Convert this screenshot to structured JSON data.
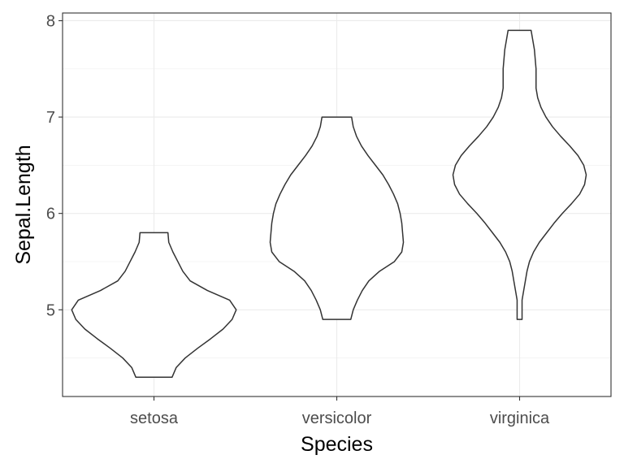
{
  "chart_data": {
    "type": "violin",
    "title": "",
    "xlabel": "Species",
    "ylabel": "Sepal.Length",
    "categories": [
      "setosa",
      "versicolor",
      "virginica"
    ],
    "ylim": [
      4.1,
      8.08
    ],
    "y_ticks": [
      5,
      6,
      7,
      8
    ],
    "y_tick_labels": [
      "5",
      "6",
      "7",
      "8"
    ],
    "grid": true,
    "legend": "none",
    "colors": {
      "outline": "#333333",
      "fill": "#ffffff",
      "grid": "#ebebeb"
    },
    "violins": [
      {
        "name": "setosa",
        "min": 4.3,
        "max": 5.8,
        "profile": [
          [
            4.3,
            0.22
          ],
          [
            4.4,
            0.27
          ],
          [
            4.5,
            0.38
          ],
          [
            4.6,
            0.53
          ],
          [
            4.7,
            0.69
          ],
          [
            4.8,
            0.84
          ],
          [
            4.9,
            0.95
          ],
          [
            5.0,
            1.0
          ],
          [
            5.1,
            0.92
          ],
          [
            5.2,
            0.65
          ],
          [
            5.3,
            0.44
          ],
          [
            5.4,
            0.35
          ],
          [
            5.5,
            0.29
          ],
          [
            5.6,
            0.23
          ],
          [
            5.7,
            0.18
          ],
          [
            5.8,
            0.17
          ]
        ]
      },
      {
        "name": "versicolor",
        "min": 4.9,
        "max": 7.0,
        "profile": [
          [
            4.9,
            0.17
          ],
          [
            5.0,
            0.2
          ],
          [
            5.1,
            0.25
          ],
          [
            5.2,
            0.31
          ],
          [
            5.3,
            0.39
          ],
          [
            5.4,
            0.52
          ],
          [
            5.5,
            0.7
          ],
          [
            5.6,
            0.79
          ],
          [
            5.7,
            0.81
          ],
          [
            5.8,
            0.8
          ],
          [
            5.9,
            0.79
          ],
          [
            6.0,
            0.77
          ],
          [
            6.1,
            0.74
          ],
          [
            6.2,
            0.69
          ],
          [
            6.3,
            0.63
          ],
          [
            6.4,
            0.56
          ],
          [
            6.5,
            0.47
          ],
          [
            6.6,
            0.38
          ],
          [
            6.7,
            0.3
          ],
          [
            6.8,
            0.24
          ],
          [
            6.9,
            0.2
          ],
          [
            7.0,
            0.18
          ]
        ]
      },
      {
        "name": "virginica",
        "min": 4.9,
        "max": 7.9,
        "profile": [
          [
            4.9,
            0.03
          ],
          [
            5.0,
            0.03
          ],
          [
            5.1,
            0.03
          ],
          [
            5.2,
            0.05
          ],
          [
            5.3,
            0.07
          ],
          [
            5.4,
            0.09
          ],
          [
            5.5,
            0.12
          ],
          [
            5.6,
            0.17
          ],
          [
            5.7,
            0.24
          ],
          [
            5.8,
            0.33
          ],
          [
            5.9,
            0.42
          ],
          [
            6.0,
            0.52
          ],
          [
            6.1,
            0.63
          ],
          [
            6.2,
            0.73
          ],
          [
            6.3,
            0.79
          ],
          [
            6.4,
            0.81
          ],
          [
            6.5,
            0.78
          ],
          [
            6.6,
            0.71
          ],
          [
            6.7,
            0.61
          ],
          [
            6.8,
            0.5
          ],
          [
            6.9,
            0.4
          ],
          [
            7.0,
            0.32
          ],
          [
            7.1,
            0.26
          ],
          [
            7.2,
            0.22
          ],
          [
            7.3,
            0.2
          ],
          [
            7.4,
            0.2
          ],
          [
            7.5,
            0.2
          ],
          [
            7.6,
            0.19
          ],
          [
            7.7,
            0.18
          ],
          [
            7.8,
            0.16
          ],
          [
            7.9,
            0.14
          ]
        ]
      }
    ]
  }
}
